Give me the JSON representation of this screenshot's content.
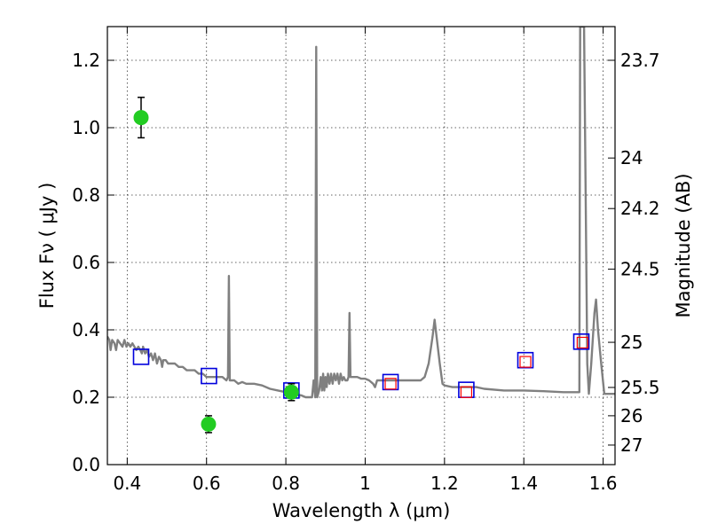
{
  "chart_data": {
    "type": "scatter",
    "xlabel": "Wavelength  λ (μm)",
    "ylabel": "Flux  Fν  ( μJy )",
    "ylabel_right": "Magnitude (AB)",
    "xlim": [
      0.35,
      1.63
    ],
    "ylim": [
      0.0,
      1.3
    ],
    "grid": true,
    "x_ticks": [
      {
        "value": 0.4,
        "label": "0.4"
      },
      {
        "value": 0.6,
        "label": "0.6"
      },
      {
        "value": 0.8,
        "label": "0.8"
      },
      {
        "value": 1.0,
        "label": "1"
      },
      {
        "value": 1.2,
        "label": "1.2"
      },
      {
        "value": 1.4,
        "label": "1.4"
      },
      {
        "value": 1.6,
        "label": "1.6"
      }
    ],
    "y_ticks": [
      {
        "value": 0.0,
        "label": "0.0"
      },
      {
        "value": 0.2,
        "label": "0.2"
      },
      {
        "value": 0.4,
        "label": "0.4"
      },
      {
        "value": 0.6,
        "label": "0.6"
      },
      {
        "value": 0.8,
        "label": "0.8"
      },
      {
        "value": 1.0,
        "label": "1.0"
      },
      {
        "value": 1.2,
        "label": "1.2"
      }
    ],
    "right_ticks": [
      {
        "flux": 1.2,
        "label": "23.7"
      },
      {
        "flux": 0.91,
        "label": "24"
      },
      {
        "flux": 0.76,
        "label": "24.2"
      },
      {
        "flux": 0.58,
        "label": "24.5"
      },
      {
        "flux": 0.363,
        "label": "25"
      },
      {
        "flux": 0.229,
        "label": "25.5"
      },
      {
        "flux": 0.145,
        "label": "26"
      },
      {
        "flux": 0.058,
        "label": "27"
      }
    ],
    "sed_model": {
      "color": "#808080",
      "points": [
        [
          0.35,
          0.38
        ],
        [
          0.355,
          0.37
        ],
        [
          0.358,
          0.34
        ],
        [
          0.362,
          0.37
        ],
        [
          0.368,
          0.36
        ],
        [
          0.372,
          0.34
        ],
        [
          0.376,
          0.37
        ],
        [
          0.382,
          0.36
        ],
        [
          0.388,
          0.35
        ],
        [
          0.393,
          0.37
        ],
        [
          0.398,
          0.35
        ],
        [
          0.403,
          0.36
        ],
        [
          0.408,
          0.35
        ],
        [
          0.413,
          0.36
        ],
        [
          0.418,
          0.35
        ],
        [
          0.423,
          0.34
        ],
        [
          0.428,
          0.35
        ],
        [
          0.433,
          0.34
        ],
        [
          0.437,
          0.33
        ],
        [
          0.44,
          0.35
        ],
        [
          0.445,
          0.33
        ],
        [
          0.45,
          0.34
        ],
        [
          0.455,
          0.32
        ],
        [
          0.46,
          0.33
        ],
        [
          0.465,
          0.31
        ],
        [
          0.47,
          0.33
        ],
        [
          0.475,
          0.3
        ],
        [
          0.48,
          0.32
        ],
        [
          0.485,
          0.31
        ],
        [
          0.488,
          0.29
        ],
        [
          0.491,
          0.31
        ],
        [
          0.497,
          0.31
        ],
        [
          0.503,
          0.3
        ],
        [
          0.51,
          0.3
        ],
        [
          0.52,
          0.3
        ],
        [
          0.53,
          0.29
        ],
        [
          0.54,
          0.29
        ],
        [
          0.55,
          0.28
        ],
        [
          0.56,
          0.28
        ],
        [
          0.57,
          0.28
        ],
        [
          0.58,
          0.27
        ],
        [
          0.59,
          0.27
        ],
        [
          0.6,
          0.26
        ],
        [
          0.61,
          0.26
        ],
        [
          0.62,
          0.26
        ],
        [
          0.63,
          0.26
        ],
        [
          0.64,
          0.26
        ],
        [
          0.65,
          0.25
        ],
        [
          0.654,
          0.26
        ],
        [
          0.6563,
          0.56
        ],
        [
          0.6585,
          0.25
        ],
        [
          0.67,
          0.25
        ],
        [
          0.68,
          0.24
        ],
        [
          0.69,
          0.245
        ],
        [
          0.7,
          0.24
        ],
        [
          0.72,
          0.24
        ],
        [
          0.74,
          0.235
        ],
        [
          0.76,
          0.225
        ],
        [
          0.78,
          0.22
        ],
        [
          0.8,
          0.215
        ],
        [
          0.82,
          0.21
        ],
        [
          0.84,
          0.205
        ],
        [
          0.85,
          0.2
        ],
        [
          0.86,
          0.2
        ],
        [
          0.866,
          0.2
        ],
        [
          0.87,
          0.25
        ],
        [
          0.874,
          0.2
        ],
        [
          0.8765,
          1.24
        ],
        [
          0.879,
          0.2
        ],
        [
          0.884,
          0.22
        ],
        [
          0.888,
          0.26
        ],
        [
          0.891,
          0.22
        ],
        [
          0.894,
          0.27
        ],
        [
          0.897,
          0.22
        ],
        [
          0.9,
          0.26
        ],
        [
          0.903,
          0.23
        ],
        [
          0.906,
          0.27
        ],
        [
          0.91,
          0.24
        ],
        [
          0.914,
          0.27
        ],
        [
          0.918,
          0.24
        ],
        [
          0.922,
          0.27
        ],
        [
          0.926,
          0.25
        ],
        [
          0.93,
          0.27
        ],
        [
          0.934,
          0.24
        ],
        [
          0.938,
          0.27
        ],
        [
          0.942,
          0.25
        ],
        [
          0.946,
          0.26
        ],
        [
          0.95,
          0.25
        ],
        [
          0.955,
          0.25
        ],
        [
          0.958,
          0.26
        ],
        [
          0.9605,
          0.45
        ],
        [
          0.963,
          0.26
        ],
        [
          0.97,
          0.26
        ],
        [
          0.98,
          0.26
        ],
        [
          0.99,
          0.255
        ],
        [
          1.0,
          0.255
        ],
        [
          1.01,
          0.25
        ],
        [
          1.02,
          0.24
        ],
        [
          1.025,
          0.23
        ],
        [
          1.03,
          0.25
        ],
        [
          1.04,
          0.25
        ],
        [
          1.06,
          0.25
        ],
        [
          1.08,
          0.25
        ],
        [
          1.1,
          0.25
        ],
        [
          1.12,
          0.25
        ],
        [
          1.14,
          0.25
        ],
        [
          1.15,
          0.26
        ],
        [
          1.16,
          0.3
        ],
        [
          1.17,
          0.38
        ],
        [
          1.175,
          0.43
        ],
        [
          1.18,
          0.38
        ],
        [
          1.188,
          0.3
        ],
        [
          1.195,
          0.24
        ],
        [
          1.2,
          0.235
        ],
        [
          1.22,
          0.23
        ],
        [
          1.25,
          0.23
        ],
        [
          1.28,
          0.23
        ],
        [
          1.3,
          0.225
        ],
        [
          1.35,
          0.22
        ],
        [
          1.4,
          0.22
        ],
        [
          1.45,
          0.218
        ],
        [
          1.5,
          0.215
        ],
        [
          1.52,
          0.215
        ],
        [
          1.54,
          0.215
        ],
        [
          1.542,
          1.3
        ],
        [
          1.552,
          1.3
        ],
        [
          1.556,
          0.8
        ],
        [
          1.56,
          0.3
        ],
        [
          1.564,
          0.21
        ],
        [
          1.57,
          0.3
        ],
        [
          1.578,
          0.45
        ],
        [
          1.582,
          0.49
        ],
        [
          1.587,
          0.4
        ],
        [
          1.595,
          0.3
        ],
        [
          1.603,
          0.21
        ],
        [
          1.63,
          0.21
        ]
      ]
    },
    "observed_points": {
      "color": "#22cc22",
      "points": [
        {
          "x": 0.435,
          "y": 1.03,
          "err": 0.06
        },
        {
          "x": 0.605,
          "y": 0.12,
          "err": 0.025
        },
        {
          "x": 0.814,
          "y": 0.215,
          "err": 0.025
        }
      ]
    },
    "model_photometry": {
      "color": "#0000dd",
      "points": [
        {
          "x": 0.435,
          "y": 0.32
        },
        {
          "x": 0.606,
          "y": 0.263
        },
        {
          "x": 0.814,
          "y": 0.22
        },
        {
          "x": 1.064,
          "y": 0.245
        },
        {
          "x": 1.255,
          "y": 0.222
        },
        {
          "x": 1.404,
          "y": 0.31
        },
        {
          "x": 1.545,
          "y": 0.365
        }
      ]
    },
    "model_photometry_alt": {
      "color": "#ff0000",
      "points": [
        {
          "x": 1.064,
          "y": 0.24
        },
        {
          "x": 1.255,
          "y": 0.215
        },
        {
          "x": 1.404,
          "y": 0.305
        },
        {
          "x": 1.548,
          "y": 0.362
        }
      ]
    }
  }
}
